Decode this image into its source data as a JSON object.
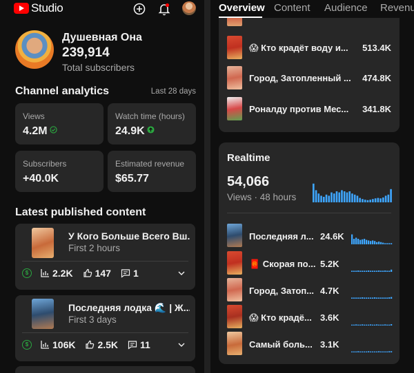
{
  "app": {
    "logo_text": "Studio"
  },
  "topbar": {
    "create_icon": "plus-circle-icon",
    "notifications_icon": "bell-icon",
    "account_icon": "avatar"
  },
  "channel": {
    "name": "Душевная Она",
    "subscribers": "239,914",
    "subscribers_label": "Total subscribers"
  },
  "analytics": {
    "title": "Channel analytics",
    "range": "Last 28 days",
    "stats": [
      {
        "label": "Views",
        "value": "4.2M",
        "badge": "check-circle-icon"
      },
      {
        "label": "Watch time (hours)",
        "value": "24.9K",
        "badge": "arrow-up-circle-icon"
      },
      {
        "label": "Subscribers",
        "value": "+40.0K"
      },
      {
        "label": "Estimated revenue",
        "value": "$65.77"
      }
    ]
  },
  "latest": {
    "title": "Latest published content",
    "items": [
      {
        "title": "У Кого Больше Всего Вш...",
        "subtitle": "First 2 hours",
        "views": "2.2K",
        "likes": "147",
        "comments": "1"
      },
      {
        "title": "Последняя лодка 🌊 | Ж...",
        "subtitle": "First 3 days",
        "views": "106K",
        "likes": "2.5K",
        "comments": "11"
      }
    ]
  },
  "tabs": [
    {
      "label": "Overview",
      "active": true
    },
    {
      "label": "Content"
    },
    {
      "label": "Audience"
    },
    {
      "label": "Revenue"
    }
  ],
  "top_content": [
    {
      "title": "😱 Кто крадёт воду и...",
      "value": "513.4K"
    },
    {
      "title": "Город, Затопленный ...",
      "value": "474.8K"
    },
    {
      "title": "Роналду против Мес...",
      "value": "341.8K"
    }
  ],
  "realtime": {
    "title": "Realtime",
    "count": "54,066",
    "subtitle": "Views · 48 hours",
    "chart_values": [
      0.85,
      0.55,
      0.4,
      0.3,
      0.25,
      0.35,
      0.3,
      0.45,
      0.4,
      0.5,
      0.45,
      0.55,
      0.5,
      0.45,
      0.5,
      0.4,
      0.35,
      0.3,
      0.2,
      0.15,
      0.12,
      0.1,
      0.12,
      0.15,
      0.18,
      0.2,
      0.18,
      0.22,
      0.3,
      0.35,
      0.6
    ],
    "items": [
      {
        "title": "Последняя л...",
        "value": "24.6K",
        "spark": [
          0.9,
          0.5,
          0.6,
          0.5,
          0.4,
          0.45,
          0.5,
          0.4,
          0.35,
          0.3,
          0.35,
          0.3,
          0.2,
          0.25,
          0.2,
          0.15,
          0.1,
          0.1,
          0.1,
          0.1
        ]
      },
      {
        "title": "🧧 Скорая по...",
        "value": "5.2K",
        "spark": [
          0.1,
          0.1,
          0.1,
          0.12,
          0.1,
          0.1,
          0.1,
          0.1,
          0.12,
          0.1,
          0.1,
          0.1,
          0.1,
          0.12,
          0.1,
          0.1,
          0.12,
          0.1,
          0.1,
          0.2
        ]
      },
      {
        "title": "Город, Затоп...",
        "value": "4.7K",
        "spark": [
          0.1,
          0.1,
          0.1,
          0.1,
          0.1,
          0.12,
          0.1,
          0.1,
          0.1,
          0.1,
          0.1,
          0.12,
          0.1,
          0.1,
          0.1,
          0.1,
          0.1,
          0.1,
          0.12,
          0.15
        ]
      },
      {
        "title": "😱 Кто крадё...",
        "value": "3.6K",
        "spark": [
          0.08,
          0.08,
          0.1,
          0.08,
          0.08,
          0.1,
          0.08,
          0.08,
          0.08,
          0.1,
          0.08,
          0.08,
          0.1,
          0.08,
          0.08,
          0.08,
          0.1,
          0.08,
          0.08,
          0.12
        ]
      },
      {
        "title": "Самый боль...",
        "value": "3.1K",
        "spark": [
          0.08,
          0.08,
          0.08,
          0.1,
          0.08,
          0.08,
          0.08,
          0.08,
          0.1,
          0.08,
          0.08,
          0.08,
          0.08,
          0.1,
          0.08,
          0.08,
          0.08,
          0.08,
          0.1,
          0.1
        ]
      }
    ]
  },
  "colors": {
    "accent_green": "#2ba640",
    "chart": "#3ea6ff",
    "card": "#272727"
  }
}
